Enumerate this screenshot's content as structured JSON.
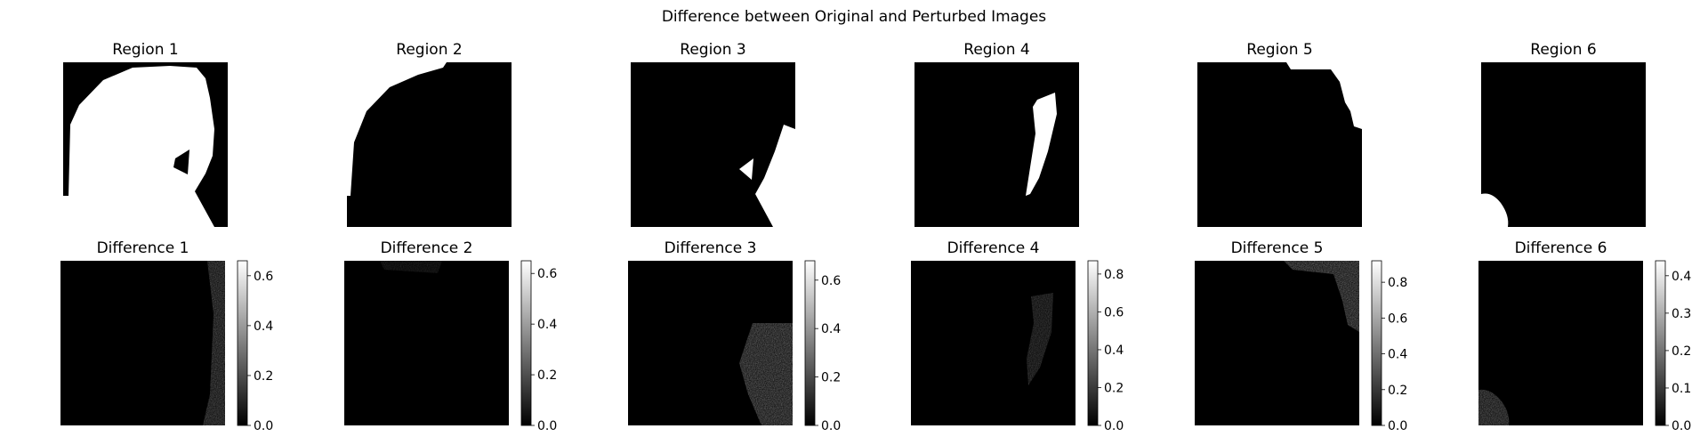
{
  "chart_data": {
    "type": "image-grid",
    "title": "Difference between Original and Perturbed Images",
    "regions": [
      {
        "title": "Region 1"
      },
      {
        "title": "Region 2"
      },
      {
        "title": "Region 3"
      },
      {
        "title": "Region 4"
      },
      {
        "title": "Region 5"
      },
      {
        "title": "Region 6"
      }
    ],
    "differences": [
      {
        "title": "Difference 1",
        "colorbar": {
          "min": 0.0,
          "max": 0.66,
          "ticks": [
            "0.0",
            "0.2",
            "0.4",
            "0.6"
          ],
          "tick_values": [
            0.0,
            0.2,
            0.4,
            0.6
          ]
        }
      },
      {
        "title": "Difference 2",
        "colorbar": {
          "min": 0.0,
          "max": 0.65,
          "ticks": [
            "0.0",
            "0.2",
            "0.4",
            "0.6"
          ],
          "tick_values": [
            0.0,
            0.2,
            0.4,
            0.6
          ]
        }
      },
      {
        "title": "Difference 3",
        "colorbar": {
          "min": 0.0,
          "max": 0.68,
          "ticks": [
            "0.0",
            "0.2",
            "0.4",
            "0.6"
          ],
          "tick_values": [
            0.0,
            0.2,
            0.4,
            0.6
          ]
        }
      },
      {
        "title": "Difference 4",
        "colorbar": {
          "min": 0.0,
          "max": 0.87,
          "ticks": [
            "0.0",
            "0.2",
            "0.4",
            "0.6",
            "0.8"
          ],
          "tick_values": [
            0.0,
            0.2,
            0.4,
            0.6,
            0.8
          ]
        }
      },
      {
        "title": "Difference 5",
        "colorbar": {
          "min": 0.0,
          "max": 0.92,
          "ticks": [
            "0.0",
            "0.2",
            "0.4",
            "0.6",
            "0.8"
          ],
          "tick_values": [
            0.0,
            0.2,
            0.4,
            0.6,
            0.8
          ]
        }
      },
      {
        "title": "Difference 6",
        "colorbar": {
          "min": 0.0,
          "max": 0.44,
          "ticks": [
            "0.0",
            "0.1",
            "0.2",
            "0.3",
            "0.4"
          ],
          "tick_values": [
            0.0,
            0.1,
            0.2,
            0.3,
            0.4
          ]
        }
      }
    ],
    "colormap": "gray",
    "colors": {
      "background": "#ffffff",
      "mask_fg": "#ffffff",
      "mask_bg": "#000000"
    }
  }
}
